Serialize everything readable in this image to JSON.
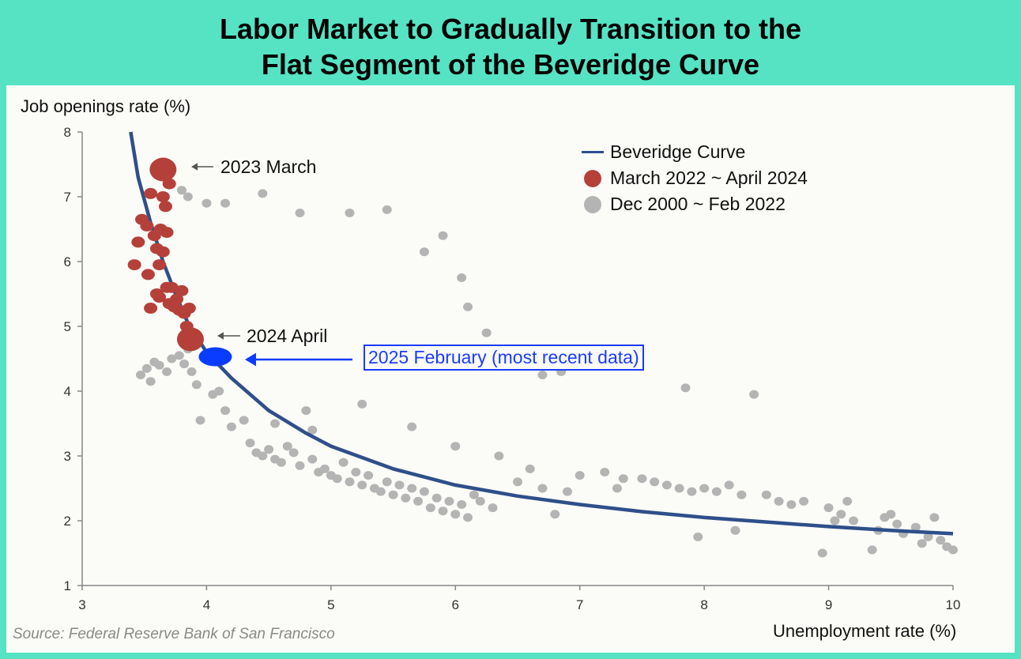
{
  "header": {
    "title_line1": "Labor Market to Gradually Transition to the",
    "title_line2": "Flat Segment of the Beveridge Curve"
  },
  "source": "Source: Federal Reserve Bank of San Francisco",
  "colors": {
    "background_frame": "#55e3c4",
    "curve": "#2f4f8a",
    "recent_points": "#b5403a",
    "historical_points": "#b4b4b4",
    "latest_point": "#0a3cff"
  },
  "chart_data": {
    "type": "scatter",
    "xlabel": "Unemployment rate (%)",
    "ylabel": "Job openings rate (%)",
    "xlim": [
      3,
      10
    ],
    "ylim": [
      1,
      8
    ],
    "x_ticks": [
      "3",
      "4",
      "5",
      "6",
      "7",
      "8",
      "9",
      "10"
    ],
    "y_ticks": [
      "1",
      "2",
      "3",
      "4",
      "5",
      "6",
      "7",
      "8"
    ],
    "grid": false,
    "legend_position": "top-right",
    "legend": [
      "Beveridge Curve",
      "March 2022 ~ April 2024",
      "Dec 2000 ~ Feb 2022"
    ],
    "series": [
      {
        "name": "Beveridge Curve",
        "kind": "curve",
        "x": [
          3.39,
          3.45,
          3.55,
          3.65,
          3.75,
          3.85,
          4.0,
          4.2,
          4.5,
          4.8,
          5.0,
          5.5,
          6.0,
          6.5,
          7.0,
          7.5,
          8.0,
          8.5,
          9.0,
          9.5,
          10.0
        ],
        "y": [
          8.0,
          7.3,
          6.6,
          6.0,
          5.5,
          5.05,
          4.6,
          4.2,
          3.7,
          3.35,
          3.15,
          2.8,
          2.55,
          2.38,
          2.25,
          2.14,
          2.05,
          1.98,
          1.91,
          1.85,
          1.8
        ]
      },
      {
        "name": "March 2022 ~ April 2024",
        "kind": "points",
        "x": [
          3.42,
          3.45,
          3.48,
          3.52,
          3.53,
          3.55,
          3.58,
          3.6,
          3.62,
          3.63,
          3.65,
          3.67,
          3.68,
          3.7,
          3.72,
          3.74,
          3.78,
          3.8,
          3.82,
          3.84,
          3.86,
          3.6,
          3.65,
          3.55,
          3.62,
          3.7,
          3.76,
          3.68
        ],
        "y": [
          5.95,
          6.3,
          6.65,
          6.55,
          5.8,
          5.28,
          6.4,
          6.2,
          5.95,
          6.5,
          7.0,
          6.85,
          6.45,
          7.2,
          5.6,
          5.3,
          5.25,
          5.55,
          5.2,
          5.0,
          5.28,
          5.5,
          6.15,
          7.05,
          5.45,
          5.35,
          5.42,
          5.6
        ]
      },
      {
        "name": "Dec 2000 ~ Feb 2022",
        "kind": "points",
        "x": [
          3.47,
          3.52,
          3.55,
          3.58,
          3.62,
          3.68,
          3.72,
          3.78,
          3.82,
          3.85,
          3.88,
          3.92,
          3.95,
          4.05,
          4.1,
          4.15,
          4.2,
          4.3,
          4.35,
          4.4,
          4.45,
          4.5,
          4.55,
          4.6,
          4.65,
          4.7,
          4.75,
          4.8,
          4.85,
          4.9,
          4.95,
          5.0,
          5.05,
          5.1,
          5.15,
          5.2,
          5.25,
          5.3,
          5.35,
          5.4,
          5.45,
          5.5,
          5.55,
          5.6,
          5.65,
          5.7,
          5.75,
          5.8,
          5.85,
          5.9,
          5.95,
          6.0,
          6.05,
          6.1,
          6.15,
          6.2,
          6.3,
          6.5,
          6.6,
          6.7,
          6.8,
          6.9,
          7.0,
          7.2,
          7.3,
          7.5,
          7.6,
          7.7,
          7.8,
          7.9,
          8.0,
          8.1,
          8.2,
          8.3,
          8.5,
          8.6,
          8.7,
          8.8,
          9.0,
          9.05,
          9.1,
          9.15,
          9.2,
          9.4,
          9.45,
          9.5,
          9.55,
          9.6,
          9.7,
          9.8,
          9.85,
          9.9,
          9.95,
          10.0,
          3.8,
          3.85,
          4.0,
          4.15,
          4.45,
          4.75,
          5.15,
          5.45,
          5.75,
          5.9,
          6.05,
          6.1,
          6.25,
          6.7,
          6.85,
          7.85,
          8.4,
          4.55,
          4.85,
          5.25,
          5.65,
          6.0,
          6.35,
          7.35,
          7.95,
          8.25,
          8.95,
          9.35,
          9.75
        ],
        "y": [
          4.25,
          4.35,
          4.15,
          4.45,
          4.4,
          4.3,
          4.5,
          4.55,
          4.42,
          4.65,
          4.3,
          4.1,
          3.55,
          3.95,
          4.0,
          3.7,
          3.45,
          3.55,
          3.2,
          3.05,
          3.0,
          3.1,
          2.95,
          2.9,
          3.15,
          3.05,
          2.85,
          3.7,
          2.95,
          2.75,
          2.8,
          2.7,
          2.65,
          2.9,
          2.6,
          2.75,
          2.55,
          2.7,
          2.5,
          2.45,
          2.6,
          2.4,
          2.55,
          2.35,
          2.5,
          2.3,
          2.45,
          2.2,
          2.35,
          2.15,
          2.3,
          2.1,
          2.25,
          2.05,
          2.4,
          2.3,
          2.2,
          2.6,
          2.8,
          2.5,
          2.1,
          2.45,
          2.7,
          2.75,
          2.5,
          2.65,
          2.6,
          2.55,
          2.5,
          2.45,
          2.5,
          2.45,
          2.55,
          2.4,
          2.4,
          2.3,
          2.25,
          2.3,
          2.2,
          2.0,
          2.1,
          2.3,
          2.0,
          1.85,
          2.05,
          2.1,
          1.95,
          1.8,
          1.9,
          1.75,
          2.05,
          1.7,
          1.6,
          1.55,
          7.1,
          7.0,
          6.9,
          6.9,
          7.05,
          6.75,
          6.75,
          6.8,
          6.15,
          6.4,
          5.75,
          5.3,
          4.9,
          4.25,
          4.3,
          4.05,
          3.95,
          3.5,
          3.4,
          3.8,
          3.45,
          3.15,
          3.0,
          2.65,
          1.75,
          1.85,
          1.5,
          1.55,
          1.65
        ]
      }
    ],
    "annotations": [
      {
        "text": "2023 March",
        "x": 3.65,
        "y": 7.42,
        "marker": "large"
      },
      {
        "text": "2024 April",
        "x": 3.87,
        "y": 4.8,
        "marker": "large"
      },
      {
        "text": "2025 February (most recent data)",
        "x": 4.07,
        "y": 4.53,
        "marker": "latest"
      }
    ]
  }
}
